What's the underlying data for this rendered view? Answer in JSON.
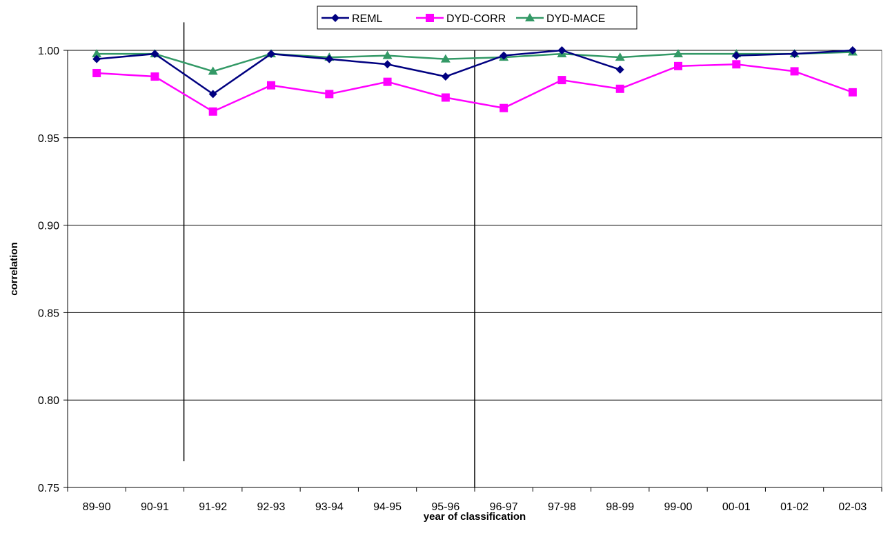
{
  "chart_data": {
    "type": "line",
    "xlabel": "year of classification",
    "ylabel": "correlation",
    "ylim": [
      0.75,
      1.0
    ],
    "yticks": [
      0.75,
      0.8,
      0.85,
      0.9,
      0.95,
      1.0
    ],
    "ytick_labels": [
      "0.75",
      "0.80",
      "0.85",
      "0.90",
      "0.95",
      "1.00"
    ],
    "grid": "horizontal",
    "legend_position": "top-center",
    "categories": [
      "89-90",
      "90-91",
      "91-92",
      "92-93",
      "93-94",
      "94-95",
      "95-96",
      "96-97",
      "97-98",
      "98-99",
      "99-00",
      "00-01",
      "01-02",
      "02-03"
    ],
    "series": [
      {
        "name": "REML",
        "color": "#000080",
        "marker": "diamond",
        "values": [
          0.995,
          0.998,
          0.975,
          0.998,
          0.995,
          0.992,
          0.985,
          0.997,
          1.0,
          0.989,
          null,
          0.997,
          0.998,
          1.0
        ]
      },
      {
        "name": "DYD-CORR",
        "color": "#FF00FF",
        "marker": "square",
        "values": [
          0.987,
          0.985,
          0.965,
          0.98,
          0.975,
          0.982,
          0.973,
          0.967,
          0.983,
          0.978,
          0.991,
          0.992,
          0.988,
          0.976
        ]
      },
      {
        "name": "DYD-MACE",
        "color": "#339966",
        "marker": "triangle",
        "values": [
          0.998,
          0.998,
          0.988,
          0.998,
          0.996,
          0.997,
          0.995,
          0.996,
          0.998,
          0.996,
          0.998,
          0.998,
          0.998,
          0.999
        ]
      }
    ],
    "reference_lines": [
      {
        "x_between": [
          "90-91",
          "91-92"
        ],
        "from": 0.765,
        "to": 1.016
      },
      {
        "x_between": [
          "95-96",
          "96-97"
        ],
        "from": 0.75,
        "to": 1.0
      }
    ]
  }
}
